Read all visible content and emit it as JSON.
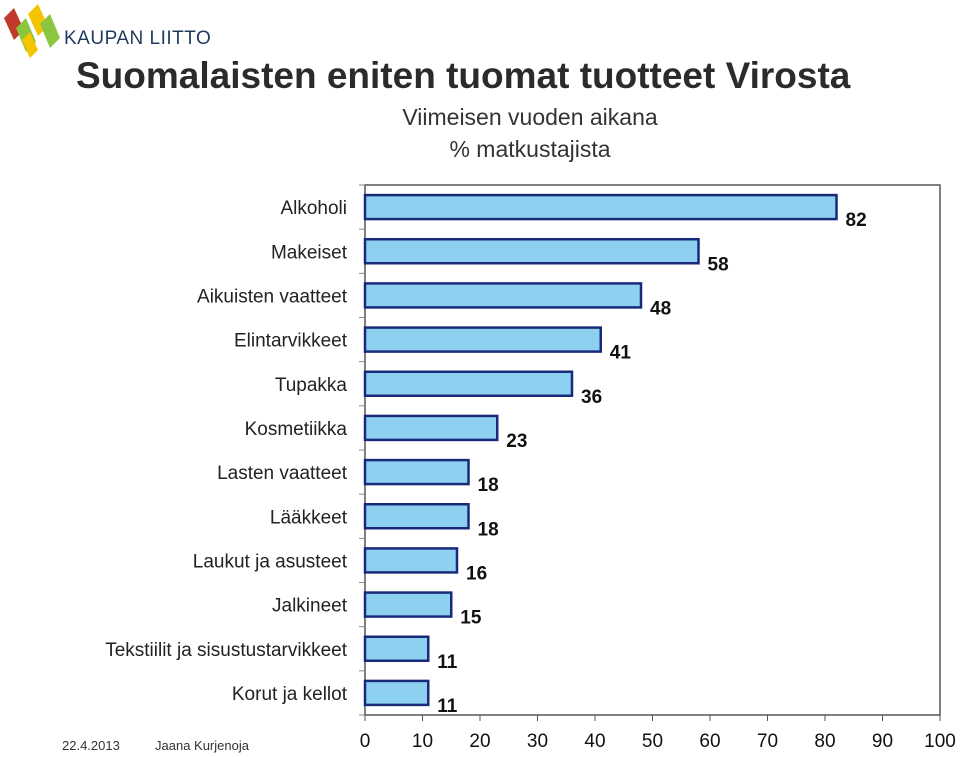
{
  "header": {
    "brand": "KAUPAN LIITTO",
    "title": "Suomalaisten eniten tuomat tuotteet Virosta",
    "subtitle_1": "Viimeisen vuoden aikana",
    "subtitle_2": "% matkustajista"
  },
  "footer": {
    "date": "22.4.2013",
    "author": "Jaana Kurjenoja"
  },
  "colors": {
    "bar_fill": "#8dd0f0",
    "bar_stroke": "#1a2a7a",
    "logo_red": "#c0392b",
    "logo_green": "#8cc63f",
    "logo_yellow": "#f5c400",
    "logo_blue": "#1f3a5f"
  },
  "chart_data": {
    "type": "bar",
    "orientation": "horizontal",
    "categories": [
      "Alkoholi",
      "Makeiset",
      "Aikuisten vaatteet",
      "Elintarvikkeet",
      "Tupakka",
      "Kosmetiikka",
      "Lasten vaatteet",
      "Lääkkeet",
      "Laukut ja asusteet",
      "Jalkineet",
      "Tekstiilit ja sisustustarvikkeet",
      "Korut ja kellot"
    ],
    "values": [
      82,
      58,
      48,
      41,
      36,
      23,
      18,
      18,
      16,
      15,
      11,
      11
    ],
    "xlim": [
      0,
      100
    ],
    "xticks": [
      0,
      10,
      20,
      30,
      40,
      50,
      60,
      70,
      80,
      90,
      100
    ],
    "grid": false,
    "data_labels": true
  }
}
